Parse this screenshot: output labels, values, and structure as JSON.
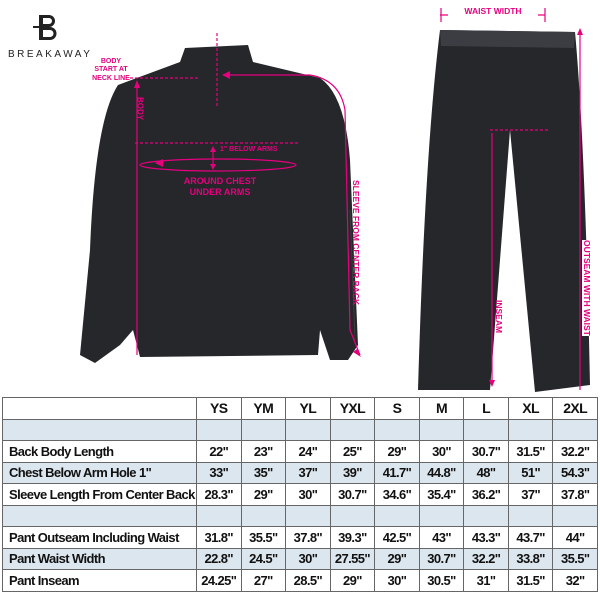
{
  "brand": {
    "name": "BREAKAWAY",
    "colors": {
      "annotation": "#e6007e",
      "garment": "#25272b",
      "row_alt": "#dce6ee"
    }
  },
  "annotations": {
    "body_start": "BODY START AT NECK LINE",
    "body": "BODY",
    "below_arms": "1\" BELOW ARMS",
    "chest": "AROUND CHEST UNDER ARMS",
    "sleeve": "SLEEVE FROM CENTER BACK",
    "waist_width": "WAIST WIDTH",
    "inseam": "INSEAM",
    "outseam": "OUTSEAM WITH WAIST"
  },
  "table": {
    "sizes": [
      "YS",
      "YM",
      "YL",
      "YXL",
      "S",
      "M",
      "L",
      "XL",
      "2XL"
    ],
    "rows": [
      {
        "label": "",
        "values": [
          "",
          "",
          "",
          "",
          "",
          "",
          "",
          "",
          ""
        ],
        "alt": true
      },
      {
        "label": "Back Body Length",
        "values": [
          "22\"",
          "23\"",
          "24\"",
          "25\"",
          "29\"",
          "30\"",
          "30.7\"",
          "31.5\"",
          "32.2\""
        ],
        "alt": false
      },
      {
        "label": "Chest Below Arm Hole 1\"",
        "values": [
          "33\"",
          "35\"",
          "37\"",
          "39\"",
          "41.7\"",
          "44.8\"",
          "48\"",
          "51\"",
          "54.3\""
        ],
        "alt": true
      },
      {
        "label": "Sleeve Length From Center Back",
        "values": [
          "28.3\"",
          "29\"",
          "30\"",
          "30.7\"",
          "34.6\"",
          "35.4\"",
          "36.2\"",
          "37\"",
          "37.8\""
        ],
        "alt": false
      },
      {
        "label": "",
        "values": [
          "",
          "",
          "",
          "",
          "",
          "",
          "",
          "",
          ""
        ],
        "alt": true
      },
      {
        "label": "Pant Outseam Including Waist",
        "values": [
          "31.8\"",
          "35.5\"",
          "37.8\"",
          "39.3\"",
          "42.5\"",
          "43\"",
          "43.3\"",
          "43.7\"",
          "44\""
        ],
        "alt": false
      },
      {
        "label": "Pant Waist Width",
        "values": [
          "22.8\"",
          "24.5\"",
          "30\"",
          "27.55\"",
          "29\"",
          "30.7\"",
          "32.2\"",
          "33.8\"",
          "35.5\""
        ],
        "alt": true
      },
      {
        "label": "Pant Inseam",
        "values": [
          "24.25\"",
          "27\"",
          "28.5\"",
          "29\"",
          "30\"",
          "30.5\"",
          "31\"",
          "31.5\"",
          "32\""
        ],
        "alt": false
      }
    ]
  }
}
